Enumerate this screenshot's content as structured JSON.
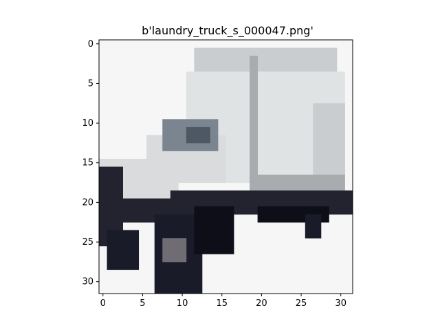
{
  "figure": {
    "title": "b'laundry_truck_s_000047.png'"
  },
  "image": {
    "description_subject": "pixelated 32x32 image of a white box truck",
    "grid_size": 32,
    "x_ticks": [
      "0",
      "5",
      "10",
      "15",
      "20",
      "25",
      "30"
    ],
    "y_ticks": [
      "0",
      "5",
      "10",
      "15",
      "20",
      "25",
      "30"
    ],
    "x_range": [
      -0.5,
      31.5
    ],
    "y_range": [
      -0.5,
      31.5
    ],
    "y_axis_inverted": true,
    "colors": {
      "background": "#f6f6f6",
      "truck_box": "#c9cdd0",
      "truck_box_highlight": "#dfe3e4",
      "truck_box_shadow": "#a9acaf",
      "cab": "#d9dbdc",
      "window": "#7a8590",
      "window_dark": "#4e5864",
      "wheel": "#1a1b28",
      "wheel_dark": "#0d0e18",
      "chassis": "#23232f",
      "rim": "#6f6d73",
      "frame": "#000000"
    }
  }
}
